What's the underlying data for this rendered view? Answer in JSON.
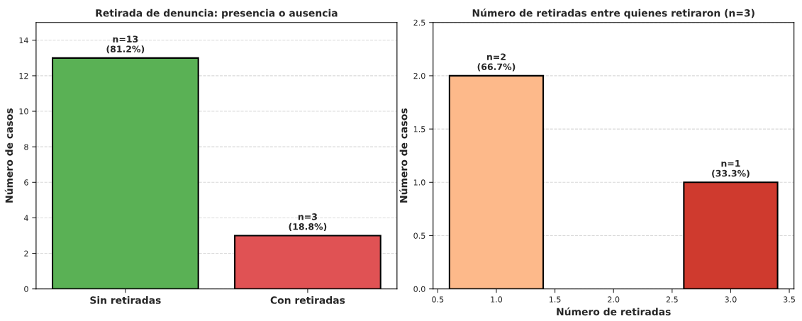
{
  "chart_data": [
    {
      "type": "bar",
      "title": "Retirada de denuncia: presencia o ausencia",
      "ylabel": "Número de casos",
      "categories": [
        "Sin retiradas",
        "Con retiradas"
      ],
      "values": [
        13,
        3
      ],
      "colors": [
        "#5ab155",
        "#e05254"
      ],
      "value_labels": [
        "n=13\n(81.2%)",
        "n=3\n(18.8%)"
      ],
      "ylim": [
        0,
        15
      ],
      "yticks": [
        0,
        2,
        4,
        6,
        8,
        10,
        12,
        14
      ],
      "grid": "y"
    },
    {
      "type": "bar",
      "title": "Número de retiradas entre quienes retiraron (n=3)",
      "xlabel": "Número de retiradas",
      "ylabel": "Número de casos",
      "x": [
        1,
        3
      ],
      "values": [
        2,
        1
      ],
      "colors": [
        "#fdb98a",
        "#cf3a2e"
      ],
      "value_labels": [
        "n=2\n(66.7%)",
        "n=1\n(33.3%)"
      ],
      "xlim": [
        0.46,
        3.54
      ],
      "xticks": [
        {
          "value": 0.5,
          "label": "0.5"
        },
        {
          "value": 1.0,
          "label": "1.0"
        },
        {
          "value": 1.5,
          "label": "1.5"
        },
        {
          "value": 2.0,
          "label": "2.0"
        },
        {
          "value": 2.5,
          "label": "2.5"
        },
        {
          "value": 3.0,
          "label": "3.0"
        },
        {
          "value": 3.5,
          "label": "3.5"
        }
      ],
      "ylim": [
        0,
        2.5
      ],
      "yticks": [
        {
          "value": 0.0,
          "label": "0.0"
        },
        {
          "value": 0.5,
          "label": "0.5"
        },
        {
          "value": 1.0,
          "label": "1.0"
        },
        {
          "value": 1.5,
          "label": "1.5"
        },
        {
          "value": 2.0,
          "label": "2.0"
        },
        {
          "value": 2.5,
          "label": "2.5"
        }
      ],
      "grid": "y"
    }
  ]
}
